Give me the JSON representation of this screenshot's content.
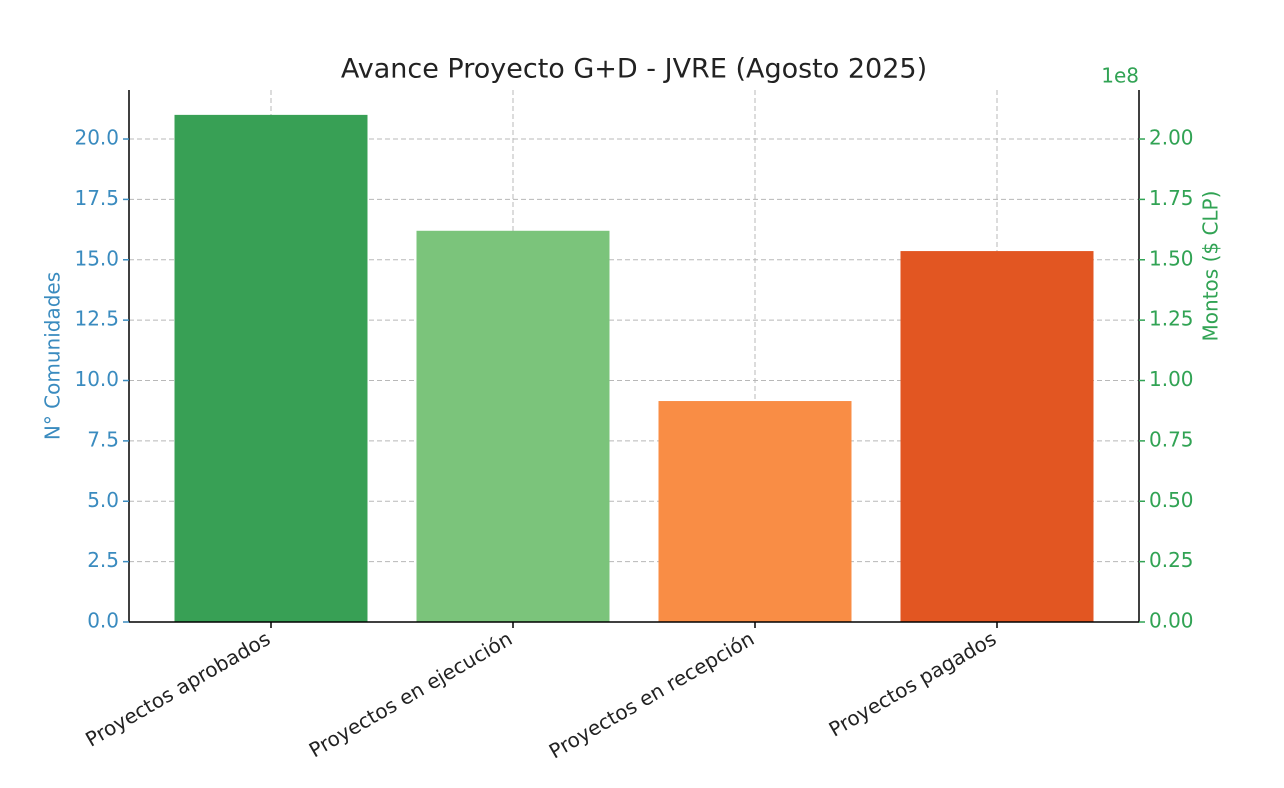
{
  "chart_data": {
    "type": "bar",
    "title": "Avance Proyecto G+D - JVRE (Agosto 2025)",
    "ylabel": "N° Comunidades",
    "y2label": "Montos ($ CLP)",
    "y2_offset_label": "1e8",
    "categories": [
      "Proyectos aprobados",
      "Proyectos en ejecución",
      "Proyectos en recepción",
      "Proyectos pagados"
    ],
    "series": [
      {
        "colors": [
          "#38a055",
          "#7bc47b",
          "#f98d45",
          "#e25622"
        ],
        "values": [
          21,
          null,
          null,
          null
        ]
      },
      {
        "axis": "y2",
        "colors": [
          "#38a055",
          "#7bc47b",
          "#f98d45",
          "#e25622"
        ],
        "values": [
          null,
          162000000,
          91500000,
          153600000
        ]
      }
    ],
    "ylim": [
      0,
      22.03
    ],
    "yticks": [
      {
        "value": 0,
        "label": "0.0"
      },
      {
        "value": 2.5,
        "label": "2.5"
      },
      {
        "value": 5,
        "label": "5.0"
      },
      {
        "value": 7.5,
        "label": "7.5"
      },
      {
        "value": 10,
        "label": "10.0"
      },
      {
        "value": 12.5,
        "label": "12.5"
      },
      {
        "value": 15,
        "label": "15.0"
      },
      {
        "value": 17.5,
        "label": "17.5"
      },
      {
        "value": 20,
        "label": "20.0"
      }
    ],
    "y2lim": [
      0,
      220300000
    ],
    "y2ticks": [
      {
        "value": 0,
        "label": "0.00"
      },
      {
        "value": 25000000,
        "label": "0.25"
      },
      {
        "value": 50000000,
        "label": "0.50"
      },
      {
        "value": 75000000,
        "label": "0.75"
      },
      {
        "value": 100000000,
        "label": "1.00"
      },
      {
        "value": 125000000,
        "label": "1.25"
      },
      {
        "value": 150000000,
        "label": "1.50"
      },
      {
        "value": 175000000,
        "label": "1.75"
      },
      {
        "value": 200000000,
        "label": "2.00"
      }
    ],
    "grid": true,
    "ycolor": "#3a8bbf",
    "y2color": "#31a354"
  }
}
